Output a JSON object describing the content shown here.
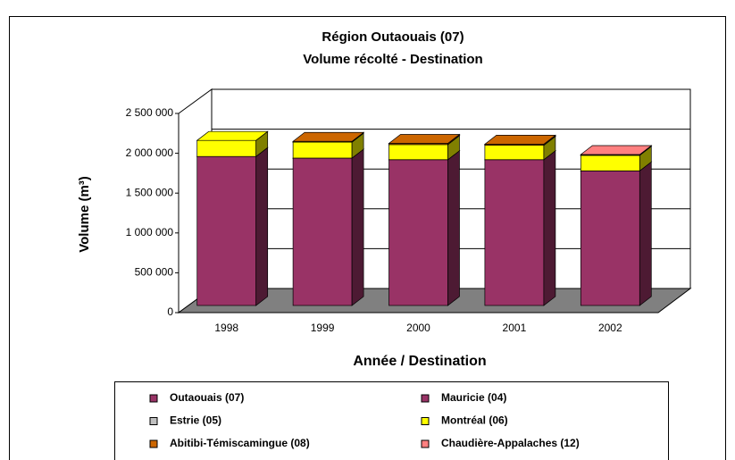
{
  "chart_data": {
    "type": "bar3d_stacked",
    "title": "Région Outaouais (07)",
    "subtitle": "Volume récolté - Destination",
    "x_label": "Année / Destination",
    "y_label": "Volume (m³)",
    "categories": [
      "1998",
      "1999",
      "2000",
      "2001",
      "2002"
    ],
    "series": [
      {
        "name": "Outaouais (07)",
        "color": "#993366",
        "values": [
          1870000,
          1850000,
          1830000,
          1830000,
          1690000
        ]
      },
      {
        "name": "Mauricie (04)",
        "color": "#993366",
        "values": [
          0,
          0,
          0,
          0,
          0
        ]
      },
      {
        "name": "Estrie (05)",
        "color": "#c0c0c0",
        "values": [
          0,
          0,
          0,
          0,
          0
        ]
      },
      {
        "name": "Montréal (06)",
        "color": "#ffff00",
        "values": [
          202000,
          200000,
          190000,
          180000,
          195000
        ]
      },
      {
        "name": "Abitibi-Témiscamingue (08)",
        "color": "#cc6600",
        "values": [
          0,
          10000,
          15000,
          15000,
          0
        ]
      },
      {
        "name": "Chaudière-Appalaches (12)",
        "color": "#ff8080",
        "values": [
          0,
          0,
          0,
          0,
          10000
        ]
      }
    ],
    "ylim": [
      0,
      2500000
    ],
    "yticks": [
      0,
      {
        "value": 500000,
        "label": "500 000"
      },
      {
        "value": 1000000,
        "label": "1 000 000"
      },
      {
        "value": 1500000,
        "label": "1 500 000"
      },
      {
        "value": 2000000,
        "label": "2 000 000"
      },
      {
        "value": 2500000,
        "label": "2 500 000"
      }
    ],
    "grid": true
  }
}
